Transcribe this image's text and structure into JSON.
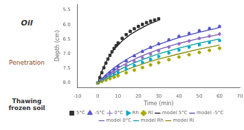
{
  "chart_data": {
    "type": "scatter",
    "xlabel": "Time (min)",
    "ylabel": "Depth (cm)",
    "annotations": [
      "Oil",
      "Penetration",
      "Thawing frozen soil"
    ],
    "xlim": [
      -10,
      70
    ],
    "xticks": [
      -10,
      0,
      10,
      20,
      30,
      40,
      50,
      60,
      70
    ],
    "ylim": [
      8.15,
      5.3
    ],
    "yticks": [
      {
        "value": 8,
        "label": "8.0"
      },
      7.5,
      {
        "value": 7,
        "label": "7.0"
      },
      6.5,
      {
        "value": 6,
        "label": "6.0"
      },
      5.5
    ],
    "grid": false,
    "legend": "bottom",
    "series": [
      {
        "name": "5°C",
        "type": "scatter",
        "color": "#333333",
        "marker": "square",
        "x": [
          0,
          1,
          2,
          3,
          4,
          5,
          6,
          7,
          8,
          9,
          10,
          12,
          14,
          16,
          18,
          20,
          22,
          24,
          26,
          28,
          30
        ],
        "values": [
          8.0,
          7.82,
          7.65,
          7.48,
          7.32,
          7.18,
          7.05,
          6.93,
          6.82,
          6.72,
          6.63,
          6.47,
          6.34,
          6.23,
          6.14,
          6.06,
          5.99,
          5.93,
          5.88,
          5.84,
          5.8
        ],
        "yerr": 0.04,
        "xerr": 0.3
      },
      {
        "name": "-5°C",
        "type": "scatter",
        "color": "#5555cc",
        "marker": "triangle_up",
        "x": [
          0,
          2,
          4,
          6,
          8,
          10,
          14,
          18,
          22,
          26,
          30,
          35,
          40,
          45,
          50,
          55,
          60
        ],
        "values": [
          8.0,
          7.88,
          7.76,
          7.64,
          7.53,
          7.43,
          7.24,
          7.07,
          6.92,
          6.78,
          6.66,
          6.52,
          6.4,
          6.3,
          6.21,
          6.13,
          6.06
        ],
        "yerr": 0.04,
        "xerr": 0.5
      },
      {
        "name": "0°C",
        "type": "scatter",
        "color": "#8866bb",
        "marker": "plus",
        "x": [
          0,
          2,
          4,
          6,
          8,
          10,
          14,
          18,
          22,
          26,
          30,
          35,
          40,
          45,
          50,
          55,
          60
        ],
        "values": [
          8.0,
          7.91,
          7.82,
          7.73,
          7.64,
          7.56,
          7.4,
          7.26,
          7.13,
          7.01,
          6.9,
          6.77,
          6.66,
          6.56,
          6.47,
          6.39,
          6.32
        ],
        "yerr": 0.04,
        "xerr": 0.5
      },
      {
        "name": "Rh",
        "type": "scatter",
        "color": "#00aacc",
        "marker": "triangle_right",
        "x": [
          0,
          2,
          4,
          6,
          8,
          10,
          14,
          18,
          22,
          26,
          30,
          35,
          40,
          45,
          50,
          55,
          60
        ],
        "values": [
          8.0,
          7.93,
          7.86,
          7.79,
          7.72,
          7.65,
          7.52,
          7.4,
          7.29,
          7.19,
          7.09,
          6.97,
          6.87,
          6.77,
          6.69,
          6.61,
          6.54
        ],
        "yerr": 0.04,
        "xerr": 0.5
      },
      {
        "name": "Rl",
        "type": "scatter",
        "color": "#aaaa00",
        "marker": "diamond",
        "x": [
          0,
          2,
          4,
          6,
          8,
          10,
          14,
          18,
          22,
          26,
          30,
          35,
          40,
          45,
          50,
          55,
          60
        ],
        "values": [
          8.0,
          7.95,
          7.9,
          7.85,
          7.8,
          7.75,
          7.65,
          7.56,
          7.47,
          7.38,
          7.3,
          7.2,
          7.11,
          7.03,
          6.95,
          6.88,
          6.81
        ],
        "yerr": 0.04,
        "xerr": 0.5
      },
      {
        "name": "model 5°C",
        "type": "line",
        "color": "#111111",
        "line_style": "solid",
        "x": [
          0,
          1,
          2,
          3,
          5,
          8,
          12,
          16,
          20,
          25,
          30
        ],
        "values": [
          8.0,
          7.78,
          7.6,
          7.44,
          7.16,
          6.85,
          6.56,
          6.34,
          6.17,
          5.99,
          5.85
        ]
      },
      {
        "name": "model -5°C",
        "type": "line",
        "color": "#4444bb",
        "line_style": "solid",
        "x": [
          0,
          2,
          5,
          10,
          15,
          20,
          25,
          30,
          40,
          50,
          60
        ],
        "values": [
          8.0,
          7.85,
          7.65,
          7.38,
          7.16,
          6.97,
          6.81,
          6.67,
          6.44,
          6.26,
          6.1
        ]
      },
      {
        "name": "model 0°C",
        "type": "line",
        "color": "#7755aa",
        "line_style": "solid",
        "x": [
          0,
          2,
          5,
          10,
          15,
          20,
          25,
          30,
          40,
          50,
          60
        ],
        "values": [
          8.0,
          7.88,
          7.71,
          7.48,
          7.29,
          7.12,
          6.98,
          6.85,
          6.64,
          6.47,
          6.33
        ]
      },
      {
        "name": "model Rh",
        "type": "line",
        "color": "#009999",
        "line_style": "solid",
        "x": [
          0,
          2,
          5,
          10,
          15,
          20,
          25,
          30,
          40,
          50,
          60
        ],
        "values": [
          8.0,
          7.91,
          7.77,
          7.57,
          7.4,
          7.25,
          7.12,
          7.0,
          6.8,
          6.63,
          6.49
        ]
      },
      {
        "name": "model Rl",
        "type": "line",
        "color": "#888800",
        "line_style": "solid",
        "x": [
          0,
          2,
          5,
          10,
          15,
          20,
          25,
          30,
          40,
          50,
          60
        ],
        "values": [
          8.0,
          7.94,
          7.83,
          7.67,
          7.52,
          7.4,
          7.28,
          7.18,
          7.0,
          6.84,
          6.7
        ]
      }
    ]
  }
}
